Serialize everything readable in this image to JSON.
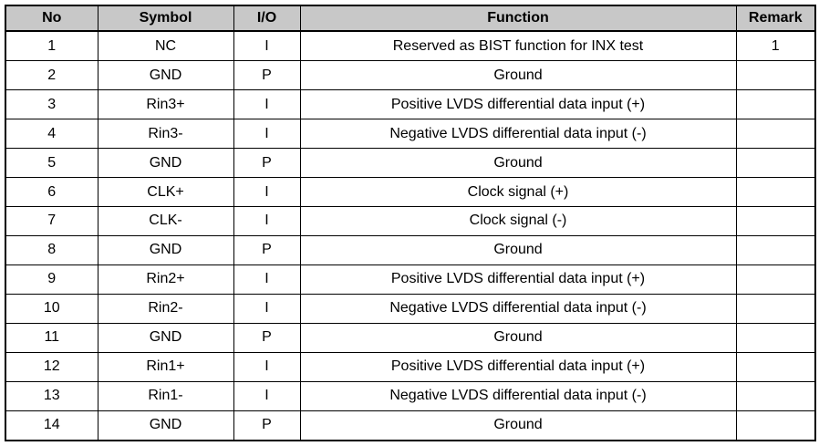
{
  "table": {
    "name": "pin-assignment-table",
    "header_bg": "#c8c8c8",
    "border_color": "#000000",
    "columns": [
      "No",
      "Symbol",
      "I/O",
      "Function",
      "Remark"
    ],
    "column_keys": [
      "no",
      "symbol",
      "io",
      "function",
      "remark"
    ],
    "rows": [
      {
        "no": "1",
        "symbol": "NC",
        "io": "I",
        "function": "Reserved as BIST function for INX test",
        "remark": "1"
      },
      {
        "no": "2",
        "symbol": "GND",
        "io": "P",
        "function": "Ground",
        "remark": ""
      },
      {
        "no": "3",
        "symbol": "Rin3+",
        "io": "I",
        "function": "Positive LVDS differential data input (+)",
        "remark": ""
      },
      {
        "no": "4",
        "symbol": "Rin3-",
        "io": "I",
        "function": "Negative LVDS differential data input (-)",
        "remark": ""
      },
      {
        "no": "5",
        "symbol": "GND",
        "io": "P",
        "function": "Ground",
        "remark": ""
      },
      {
        "no": "6",
        "symbol": "CLK+",
        "io": "I",
        "function": "Clock signal (+)",
        "remark": ""
      },
      {
        "no": "7",
        "symbol": "CLK-",
        "io": "I",
        "function": "Clock signal (-)",
        "remark": ""
      },
      {
        "no": "8",
        "symbol": "GND",
        "io": "P",
        "function": "Ground",
        "remark": ""
      },
      {
        "no": "9",
        "symbol": "Rin2+",
        "io": "I",
        "function": "Positive LVDS differential data input (+)",
        "remark": ""
      },
      {
        "no": "10",
        "symbol": "Rin2-",
        "io": "I",
        "function": "Negative LVDS differential data input (-)",
        "remark": ""
      },
      {
        "no": "11",
        "symbol": "GND",
        "io": "P",
        "function": "Ground",
        "remark": ""
      },
      {
        "no": "12",
        "symbol": "Rin1+",
        "io": "I",
        "function": "Positive LVDS differential data input (+)",
        "remark": ""
      },
      {
        "no": "13",
        "symbol": "Rin1-",
        "io": "I",
        "function": "Negative LVDS differential data input (-)",
        "remark": ""
      },
      {
        "no": "14",
        "symbol": "GND",
        "io": "P",
        "function": "Ground",
        "remark": ""
      }
    ]
  }
}
